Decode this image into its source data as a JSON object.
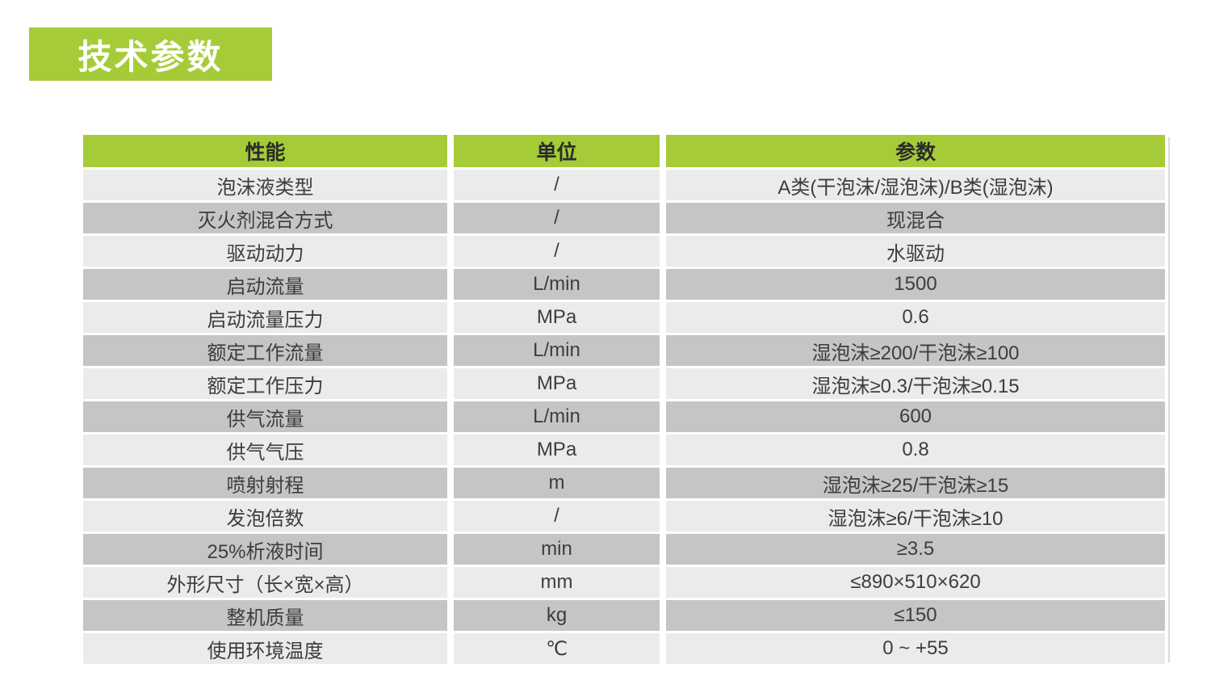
{
  "page": {
    "title_badge": "技术参数",
    "colors": {
      "accent_green": "#a5cc38",
      "row_dark": "#c5c5c5",
      "row_light": "#ebebeb",
      "header_text": "#2b2b2b",
      "body_text": "#3d3d3d",
      "badge_text": "#ffffff"
    }
  },
  "table": {
    "headers": [
      "性能",
      "单位",
      "参数"
    ],
    "rows": [
      {
        "name": "泡沫液类型",
        "unit": "/",
        "value": "A类(干泡沫/湿泡沫)/B类(湿泡沫)"
      },
      {
        "name": "灭火剂混合方式",
        "unit": "/",
        "value": "现混合"
      },
      {
        "name": "驱动动力",
        "unit": "/",
        "value": "水驱动"
      },
      {
        "name": "启动流量",
        "unit": "L/min",
        "value": "1500"
      },
      {
        "name": "启动流量压力",
        "unit": "MPa",
        "value": "0.6"
      },
      {
        "name": "额定工作流量",
        "unit": "L/min",
        "value": "湿泡沫≥200/干泡沫≥100"
      },
      {
        "name": "额定工作压力",
        "unit": "MPa",
        "value": "湿泡沫≥0.3/干泡沫≥0.15"
      },
      {
        "name": "供气流量",
        "unit": "L/min",
        "value": "600"
      },
      {
        "name": "供气气压",
        "unit": "MPa",
        "value": "0.8"
      },
      {
        "name": "喷射射程",
        "unit": "m",
        "value": "湿泡沫≥25/干泡沫≥15"
      },
      {
        "name": "发泡倍数",
        "unit": "/",
        "value": "湿泡沫≥6/干泡沫≥10"
      },
      {
        "name": "25%析液时间",
        "unit": "min",
        "value": "≥3.5"
      },
      {
        "name": "外形尺寸（长×宽×高）",
        "unit": "mm",
        "value": "≤890×510×620"
      },
      {
        "name": "整机质量",
        "unit": "kg",
        "value": "≤150"
      },
      {
        "name": "使用环境温度",
        "unit": "℃",
        "value": "0 ~ +55"
      }
    ]
  }
}
